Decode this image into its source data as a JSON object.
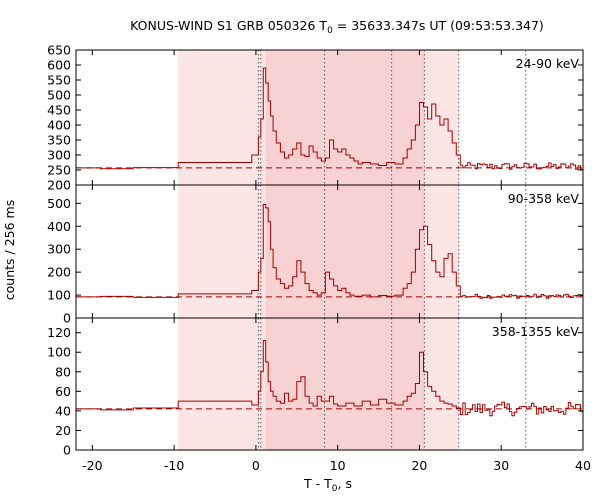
{
  "chart_data": {
    "type": "line",
    "title": {
      "prefix": "KONUS-WIND S1 GRB 050326 T",
      "sub": "0",
      "suffix": " = 35633.347s UT (09:53:53.347)"
    },
    "xlabel": {
      "prefix": "T - T",
      "sub": "0",
      "suffix": ", s"
    },
    "ylabel": "counts / 256 ms",
    "xlim": [
      -22,
      40
    ],
    "xticks": [
      -20,
      -10,
      0,
      10,
      20,
      30,
      40
    ],
    "xtick_labels": [
      "-20",
      "-10",
      "0",
      "10",
      "20",
      "30",
      "40"
    ],
    "colors": {
      "curve": "#a50000",
      "background": "#a50000",
      "shade_light": "#fbe5e5",
      "shade_dark": "#f8d2d2",
      "vline": "#555555"
    },
    "shaded_intervals": [
      {
        "from": -9.5,
        "to": 24.8,
        "level": "light"
      },
      {
        "from": 1.2,
        "to": 20.6,
        "level": "dark"
      }
    ],
    "vertical_lines": [
      0.3,
      0.6,
      8.4,
      16.6,
      20.6,
      24.8,
      33.0
    ],
    "panels": [
      {
        "label": "24-90 keV",
        "ylim": [
          200,
          650
        ],
        "yticks": [
          200,
          250,
          300,
          350,
          400,
          450,
          500,
          550,
          600,
          650
        ],
        "ytick_labels": [
          "200",
          "250",
          "300",
          "350",
          "400",
          "450",
          "500",
          "550",
          "600",
          "650"
        ],
        "background_level": 257,
        "pre_burst": [
          [
            -22,
            257
          ],
          [
            -19,
            254
          ],
          [
            -15,
            258
          ],
          [
            -9.5,
            275
          ],
          [
            -0.5,
            300
          ]
        ],
        "burst": [
          [
            0.3,
            360
          ],
          [
            0.6,
            420
          ],
          [
            0.9,
            590
          ],
          [
            1.2,
            540
          ],
          [
            1.5,
            480
          ],
          [
            1.8,
            430
          ],
          [
            2.1,
            380
          ],
          [
            2.5,
            340
          ],
          [
            3,
            310
          ],
          [
            3.5,
            290
          ],
          [
            4,
            300
          ],
          [
            4.5,
            320
          ],
          [
            5,
            340
          ],
          [
            5.5,
            300
          ],
          [
            6,
            295
          ],
          [
            6.5,
            330
          ],
          [
            7,
            310
          ],
          [
            7.5,
            290
          ],
          [
            8,
            280
          ],
          [
            8.5,
            290
          ],
          [
            9,
            350
          ],
          [
            9.5,
            320
          ],
          [
            10,
            310
          ],
          [
            10.5,
            320
          ],
          [
            11,
            300
          ],
          [
            11.5,
            290
          ],
          [
            12,
            280
          ],
          [
            12.5,
            270
          ],
          [
            13,
            275
          ],
          [
            14,
            270
          ],
          [
            15,
            265
          ],
          [
            16,
            275
          ],
          [
            17,
            270
          ],
          [
            18,
            290
          ],
          [
            18.5,
            320
          ],
          [
            19,
            350
          ],
          [
            19.5,
            400
          ],
          [
            20,
            475
          ],
          [
            20.5,
            460
          ],
          [
            21,
            420
          ],
          [
            21.5,
            470
          ],
          [
            22,
            430
          ],
          [
            22.5,
            400
          ],
          [
            23,
            420
          ],
          [
            23.5,
            380
          ],
          [
            24,
            340
          ],
          [
            24.5,
            300
          ]
        ],
        "tail_level": 262,
        "tail_noise": 12
      },
      {
        "label": "90-358 keV",
        "ylim": [
          0,
          580
        ],
        "yticks": [
          0,
          100,
          200,
          300,
          400,
          500
        ],
        "ytick_labels": [
          "0",
          "100",
          "200",
          "300",
          "400",
          "500"
        ],
        "background_level": 92,
        "pre_burst": [
          [
            -22,
            92
          ],
          [
            -19,
            94
          ],
          [
            -15,
            90
          ],
          [
            -9.5,
            105
          ],
          [
            -0.5,
            120
          ]
        ],
        "burst": [
          [
            0.3,
            200
          ],
          [
            0.6,
            260
          ],
          [
            0.9,
            495
          ],
          [
            1.2,
            480
          ],
          [
            1.5,
            420
          ],
          [
            1.8,
            300
          ],
          [
            2.1,
            220
          ],
          [
            2.5,
            170
          ],
          [
            3,
            150
          ],
          [
            3.5,
            130
          ],
          [
            4,
            140
          ],
          [
            4.5,
            180
          ],
          [
            5,
            250
          ],
          [
            5.5,
            200
          ],
          [
            6,
            150
          ],
          [
            6.5,
            120
          ],
          [
            7,
            110
          ],
          [
            7.5,
            100
          ],
          [
            8,
            110
          ],
          [
            8.5,
            200
          ],
          [
            9,
            170
          ],
          [
            9.5,
            140
          ],
          [
            10,
            120
          ],
          [
            10.5,
            130
          ],
          [
            11,
            110
          ],
          [
            11.5,
            100
          ],
          [
            12,
            95
          ],
          [
            13,
            100
          ],
          [
            14,
            92
          ],
          [
            15,
            98
          ],
          [
            16,
            95
          ],
          [
            17,
            100
          ],
          [
            18,
            130
          ],
          [
            18.5,
            150
          ],
          [
            19,
            200
          ],
          [
            19.5,
            300
          ],
          [
            20,
            385
          ],
          [
            20.5,
            400
          ],
          [
            21,
            320
          ],
          [
            21.5,
            250
          ],
          [
            22,
            200
          ],
          [
            22.5,
            180
          ],
          [
            23,
            260
          ],
          [
            23.5,
            280
          ],
          [
            24,
            200
          ],
          [
            24.5,
            140
          ]
        ],
        "tail_level": 95,
        "tail_noise": 9
      },
      {
        "label": "358-1355 keV",
        "ylim": [
          0,
          135
        ],
        "yticks": [
          0,
          20,
          40,
          60,
          80,
          100,
          120
        ],
        "ytick_labels": [
          "0",
          "20",
          "40",
          "60",
          "80",
          "100",
          "120"
        ],
        "background_level": 42,
        "pre_burst": [
          [
            -22,
            42
          ],
          [
            -19,
            41
          ],
          [
            -15,
            43
          ],
          [
            -9.5,
            50
          ],
          [
            -0.5,
            46
          ]
        ],
        "burst": [
          [
            0.3,
            60
          ],
          [
            0.6,
            80
          ],
          [
            0.9,
            112
          ],
          [
            1.2,
            90
          ],
          [
            1.5,
            70
          ],
          [
            1.8,
            60
          ],
          [
            2.1,
            55
          ],
          [
            2.5,
            50
          ],
          [
            3,
            48
          ],
          [
            3.5,
            58
          ],
          [
            4,
            50
          ],
          [
            4.5,
            52
          ],
          [
            5,
            70
          ],
          [
            5.5,
            75
          ],
          [
            6,
            55
          ],
          [
            6.5,
            48
          ],
          [
            7,
            45
          ],
          [
            7.5,
            55
          ],
          [
            8,
            50
          ],
          [
            8.5,
            50
          ],
          [
            9,
            55
          ],
          [
            9.5,
            47
          ],
          [
            10,
            45
          ],
          [
            11,
            48
          ],
          [
            12,
            45
          ],
          [
            13,
            50
          ],
          [
            14,
            46
          ],
          [
            15,
            52
          ],
          [
            16,
            48
          ],
          [
            17,
            46
          ],
          [
            18,
            50
          ],
          [
            18.5,
            55
          ],
          [
            19,
            58
          ],
          [
            19.5,
            68
          ],
          [
            20,
            100
          ],
          [
            20.5,
            80
          ],
          [
            21,
            65
          ],
          [
            21.5,
            60
          ],
          [
            22,
            55
          ],
          [
            22.5,
            50
          ],
          [
            23,
            48
          ],
          [
            23.5,
            47
          ],
          [
            24,
            45
          ],
          [
            24.5,
            43
          ]
        ],
        "tail_level": 42,
        "tail_noise": 7
      }
    ]
  }
}
